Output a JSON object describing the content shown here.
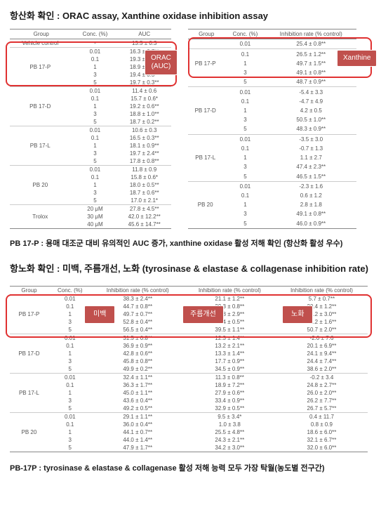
{
  "section1": {
    "title": "항산화 확인 : ORAC assay, Xanthine oxidase inhibition assay",
    "left_table": {
      "headers": [
        "Group",
        "Conc. (%)",
        "AUC"
      ],
      "rows": [
        {
          "group": "Vehicle control",
          "conc": "-",
          "val": "13.5 ± 0.3",
          "sep": true
        },
        {
          "group": "",
          "conc": "0.01",
          "val": "16.3 ± 0.7**",
          "sep": true
        },
        {
          "group": "",
          "conc": "0.1",
          "val": "19.3 ± 0.2**"
        },
        {
          "group": "PB 17-P",
          "conc": "1",
          "val": "18.9 ± 0.3**"
        },
        {
          "group": "",
          "conc": "3",
          "val": "19.4 ± 0.3**"
        },
        {
          "group": "",
          "conc": "5",
          "val": "19.7 ± 0.3**"
        },
        {
          "group": "",
          "conc": "0.01",
          "val": "11.4 ± 0.6",
          "sep": true
        },
        {
          "group": "",
          "conc": "0.1",
          "val": "15.7 ± 0.6*"
        },
        {
          "group": "PB 17-D",
          "conc": "1",
          "val": "19.2 ± 0.6**"
        },
        {
          "group": "",
          "conc": "3",
          "val": "18.8 ± 1.0**"
        },
        {
          "group": "",
          "conc": "5",
          "val": "18.7 ± 0.2**"
        },
        {
          "group": "",
          "conc": "0.01",
          "val": "10.6 ± 0.3",
          "sep": true
        },
        {
          "group": "",
          "conc": "0.1",
          "val": "16.5 ± 0.3**"
        },
        {
          "group": "PB 17-L",
          "conc": "1",
          "val": "18.1 ± 0.9**"
        },
        {
          "group": "",
          "conc": "3",
          "val": "19.7 ± 2.4**"
        },
        {
          "group": "",
          "conc": "5",
          "val": "17.8 ± 0.8**"
        },
        {
          "group": "",
          "conc": "0.01",
          "val": "11.8 ± 0.9",
          "sep": true
        },
        {
          "group": "",
          "conc": "0.1",
          "val": "15.8 ± 0.6*"
        },
        {
          "group": "PB 20",
          "conc": "1",
          "val": "18.0 ± 0.5**"
        },
        {
          "group": "",
          "conc": "3",
          "val": "18.7 ± 0.6**"
        },
        {
          "group": "",
          "conc": "5",
          "val": "17.0 ± 2.1*"
        },
        {
          "group": "",
          "conc": "20 μM",
          "val": "27.8 ± 4.5**",
          "sep": true
        },
        {
          "group": "Trolox",
          "conc": "30 μM",
          "val": "42.0 ± 12.2**"
        },
        {
          "group": "",
          "conc": "40 μM",
          "val": "45.6 ± 14.7**",
          "last": true
        }
      ]
    },
    "right_table": {
      "headers": [
        "Group",
        "Conc. (%)",
        "Inhibition rate (% control)"
      ],
      "rows": [
        {
          "group": "",
          "conc": "0.01",
          "val": "25.4 ± 0.8**"
        },
        {
          "group": "",
          "conc": "0.1",
          "val": "26.5 ± 1.2**",
          "sep": true
        },
        {
          "group": "PB 17-P",
          "conc": "1",
          "val": "49.7 ± 1.5**"
        },
        {
          "group": "",
          "conc": "3",
          "val": "49.1 ± 0.8**"
        },
        {
          "group": "",
          "conc": "5",
          "val": "48.7 ± 0.9**"
        },
        {
          "group": "",
          "conc": "0.01",
          "val": "-5.4 ± 3.3",
          "sep": true
        },
        {
          "group": "",
          "conc": "0.1",
          "val": "-4.7 ± 4.9"
        },
        {
          "group": "PB 17-D",
          "conc": "1",
          "val": "4.2 ± 0.5"
        },
        {
          "group": "",
          "conc": "3",
          "val": "50.5 ± 1.0**"
        },
        {
          "group": "",
          "conc": "5",
          "val": "48.3 ± 0.9**"
        },
        {
          "group": "",
          "conc": "0.01",
          "val": "-3.5 ± 3.0",
          "sep": true
        },
        {
          "group": "",
          "conc": "0.1",
          "val": "-0.7 ± 1.3"
        },
        {
          "group": "PB 17-L",
          "conc": "1",
          "val": "1.1 ± 2.7"
        },
        {
          "group": "",
          "conc": "3",
          "val": "47.4 ± 2.3**"
        },
        {
          "group": "",
          "conc": "5",
          "val": "46.5 ± 1.5**"
        },
        {
          "group": "",
          "conc": "0.01",
          "val": "-2.3 ± 1.6",
          "sep": true
        },
        {
          "group": "",
          "conc": "0.1",
          "val": "0.6 ± 1.2"
        },
        {
          "group": "PB 20",
          "conc": "1",
          "val": "2.8 ± 1.8"
        },
        {
          "group": "",
          "conc": "3",
          "val": "49.1 ± 0.8**"
        },
        {
          "group": "",
          "conc": "5",
          "val": "46.0 ± 0.9**",
          "last": true
        }
      ]
    },
    "badges": {
      "orac": "ORAC\n(AUC)",
      "xanthine": "Xanthine"
    },
    "conclusion": "PB 17-P : 용매 대조군 대비 유의적인 AUC 증가, xanthine oxidase 활성 저해 확인 (항산화 활성 우수)"
  },
  "section2": {
    "title": "항노화 확인 : 미백, 주름개선, 노화 (tyrosinase & elastase & collagenase inhibition rate)",
    "table": {
      "headers": [
        "Group",
        "Conc. (%)",
        "Inhibition rate (% control)",
        "Inhibition rate (% control)",
        "Inhibition rate (% control)"
      ],
      "rows": [
        {
          "group": "",
          "conc": "0.01",
          "v1": "38.3 ± 2.4**",
          "v2": "21.1 ± 1.2**",
          "v3": "5.7 ± 0.7**"
        },
        {
          "group": "",
          "conc": "0.1",
          "v1": "44.7 ± 0.8**",
          "v2": "29.3 ± 0.8**",
          "v3": "20.4 ± 1.2**"
        },
        {
          "group": "PB 17-P",
          "conc": "1",
          "v1": "49.7 ± 0.7**",
          "v2": "27.8 ± 2.9**",
          "v3": "42.2 ± 3.0**"
        },
        {
          "group": "",
          "conc": "3",
          "v1": "52.8 ± 0.4**",
          "v2": "33.4 ± 0.5**",
          "v3": "46.2 ± 1.6**"
        },
        {
          "group": "",
          "conc": "5",
          "v1": "56.5 ± 0.4**",
          "v2": "39.5 ± 1.1**",
          "v3": "50.7 ± 2.0**"
        },
        {
          "group": "",
          "conc": "0.01",
          "v1": "31.5 ± 0.8**",
          "v2": "12.3 ± 1.4**",
          "v3": "-2.0 ± 7.6",
          "sep": true
        },
        {
          "group": "",
          "conc": "0.1",
          "v1": "36.9 ± 0.9**",
          "v2": "13.2 ± 2.1**",
          "v3": "20.1 ± 6.9**"
        },
        {
          "group": "PB 17-D",
          "conc": "1",
          "v1": "42.8 ± 0.6**",
          "v2": "13.3 ± 1.4**",
          "v3": "24.1 ± 9.4**"
        },
        {
          "group": "",
          "conc": "3",
          "v1": "45.8 ± 0.8**",
          "v2": "17.7 ± 0.9**",
          "v3": "24.4 ± 7.4**"
        },
        {
          "group": "",
          "conc": "5",
          "v1": "49.9 ± 0.2**",
          "v2": "34.5 ± 0.9**",
          "v3": "38.6 ± 2.0**"
        },
        {
          "group": "",
          "conc": "0.01",
          "v1": "32.4 ± 1.1**",
          "v2": "11.3 ± 0.8**",
          "v3": "-0.2 ± 3.4",
          "sep": true
        },
        {
          "group": "",
          "conc": "0.1",
          "v1": "36.3 ± 1.7**",
          "v2": "18.9 ± 7.2**",
          "v3": "24.8 ± 2.7**"
        },
        {
          "group": "PB 17-L",
          "conc": "1",
          "v1": "45.0 ± 1.1**",
          "v2": "27.9 ± 0.6**",
          "v3": "26.0 ± 2.0**"
        },
        {
          "group": "",
          "conc": "3",
          "v1": "43.6 ± 0.4**",
          "v2": "33.4 ± 0.9**",
          "v3": "26.2 ± 7.7**"
        },
        {
          "group": "",
          "conc": "5",
          "v1": "49.2 ± 0.5**",
          "v2": "32.9 ± 0.5**",
          "v3": "26.7 ± 5.7**"
        },
        {
          "group": "",
          "conc": "0.01",
          "v1": "29.1 ± 1.1**",
          "v2": "9.5 ± 3.4*",
          "v3": "0.4 ± 11.7",
          "sep": true
        },
        {
          "group": "",
          "conc": "0.1",
          "v1": "36.0 ± 0.4**",
          "v2": "1.0 ± 3.8",
          "v3": "0.8 ± 0.9"
        },
        {
          "group": "PB 20",
          "conc": "1",
          "v1": "44.1 ± 0.7**",
          "v2": "25.5 ± 4.8**",
          "v3": "18.6 ± 6.0**"
        },
        {
          "group": "",
          "conc": "3",
          "v1": "44.0 ± 1.4**",
          "v2": "24.3 ± 2.1**",
          "v3": "32.1 ± 6.7**"
        },
        {
          "group": "",
          "conc": "5",
          "v1": "47.9 ± 1.7**",
          "v2": "34.2 ± 3.0**",
          "v3": "32.0 ± 6.0**",
          "last": true
        }
      ]
    },
    "badges": {
      "b1": "미백",
      "b2": "주름개선",
      "b3": "노화"
    },
    "conclusion": "PB-17P : tyrosinase & elastase & collagenase 활성 저해 능력 모두 가장 탁월(농도별 전구간)"
  }
}
